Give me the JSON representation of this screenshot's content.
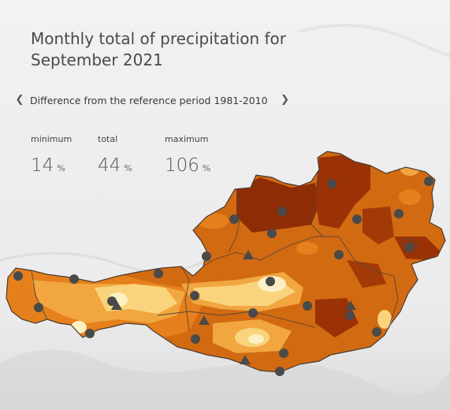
{
  "title": "Monthly total of precipitation for\nSeptember 2021",
  "navigator": {
    "label": "Difference from the reference period 1981-2010",
    "prev_icon": "chevron-left-icon",
    "next_icon": "chevron-right-icon"
  },
  "stats": [
    {
      "label": "minimum",
      "value": "14",
      "unit": "%"
    },
    {
      "label": "total",
      "value": "44",
      "unit": "%"
    },
    {
      "label": "maximum",
      "value": "106",
      "unit": "%"
    }
  ],
  "colors": {
    "very_dry": "#8e2d05",
    "dry": "#c8530a",
    "moderately_dry": "#e5801c",
    "slightly_dry": "#f1a640",
    "near_normal": "#fad47c",
    "pale": "#fdf0c4",
    "border": "#4a3a30",
    "marker": "#4a4a4a"
  },
  "markers": {
    "station_shape": "circle",
    "mountain_station_shape": "triangle"
  }
}
